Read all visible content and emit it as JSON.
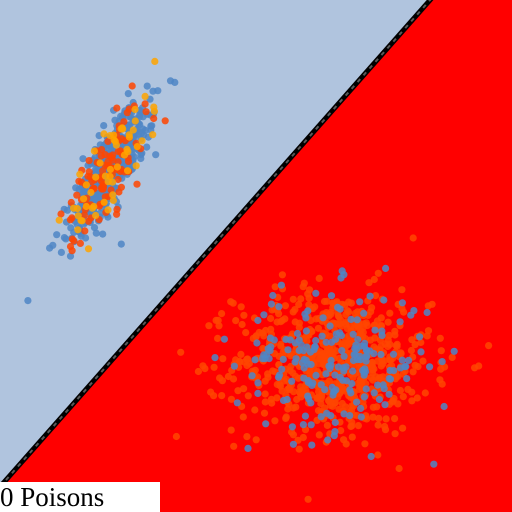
{
  "chart_data": {
    "type": "scatter",
    "title": "",
    "xlabel": "",
    "ylabel": "",
    "xlim": [
      0,
      100
    ],
    "ylim": [
      0,
      100
    ],
    "grid": false,
    "legend": "none",
    "caption": "0 Poisons",
    "regions": {
      "above_boundary_color": "#b0c4de",
      "below_boundary_color": "#ff0000"
    },
    "decision_boundary": {
      "x": [
        0.5,
        84.0
      ],
      "y": [
        5.5,
        100.0
      ],
      "color": "#000000",
      "dash_color": "#5a5a5a"
    },
    "clusters": [
      {
        "center": [
          21.5,
          67.0
        ],
        "std_major": 7.5,
        "std_minor": 2.2,
        "angle_deg": 60,
        "points": [
          {
            "color": "#4f86c6",
            "count": 420
          },
          {
            "color": "#ff4500",
            "count": 110
          },
          {
            "color": "#ffa500",
            "count": 55
          }
        ]
      },
      {
        "center": [
          65.0,
          29.5
        ],
        "std_major": 9.5,
        "std_minor": 7.0,
        "angle_deg": 0,
        "points": [
          {
            "color": "#ff4500",
            "count": 700
          },
          {
            "color": "#4f86c6",
            "count": 200
          }
        ]
      }
    ],
    "marker_color_map_note": ""
  }
}
